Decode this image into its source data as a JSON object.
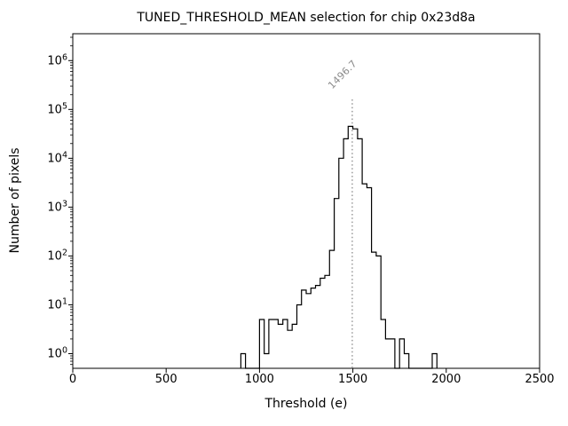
{
  "chart_data": {
    "type": "histogram",
    "title": "TUNED_THRESHOLD_MEAN selection for chip 0x23d8a",
    "xlabel": "Threshold (e)",
    "ylabel": "Number of pixels",
    "xlim": [
      0,
      2500
    ],
    "xticks": [
      0,
      500,
      1000,
      1500,
      2000,
      2500
    ],
    "yscale": "log",
    "ytick_exponents": [
      0,
      1,
      2,
      3,
      4,
      5,
      6
    ],
    "ylim_log": [
      -0.3,
      6.55
    ],
    "grid": false,
    "legend": "none",
    "line_color": "#000000",
    "bin_start": 900,
    "bin_width": 25,
    "counts": [
      1,
      0,
      0,
      0,
      5,
      1,
      5,
      5,
      4,
      5,
      3,
      4,
      10,
      20,
      17,
      22,
      25,
      35,
      40,
      130,
      1500,
      10000,
      25000,
      45000,
      40000,
      25000,
      3000,
      2500,
      120,
      100,
      5,
      2,
      2,
      0,
      2,
      1,
      0,
      0,
      0,
      0,
      0,
      1
    ],
    "vline": {
      "x": 1496.7,
      "label": "1496.7",
      "color": "#8a8a8a",
      "style": "dotted"
    }
  }
}
